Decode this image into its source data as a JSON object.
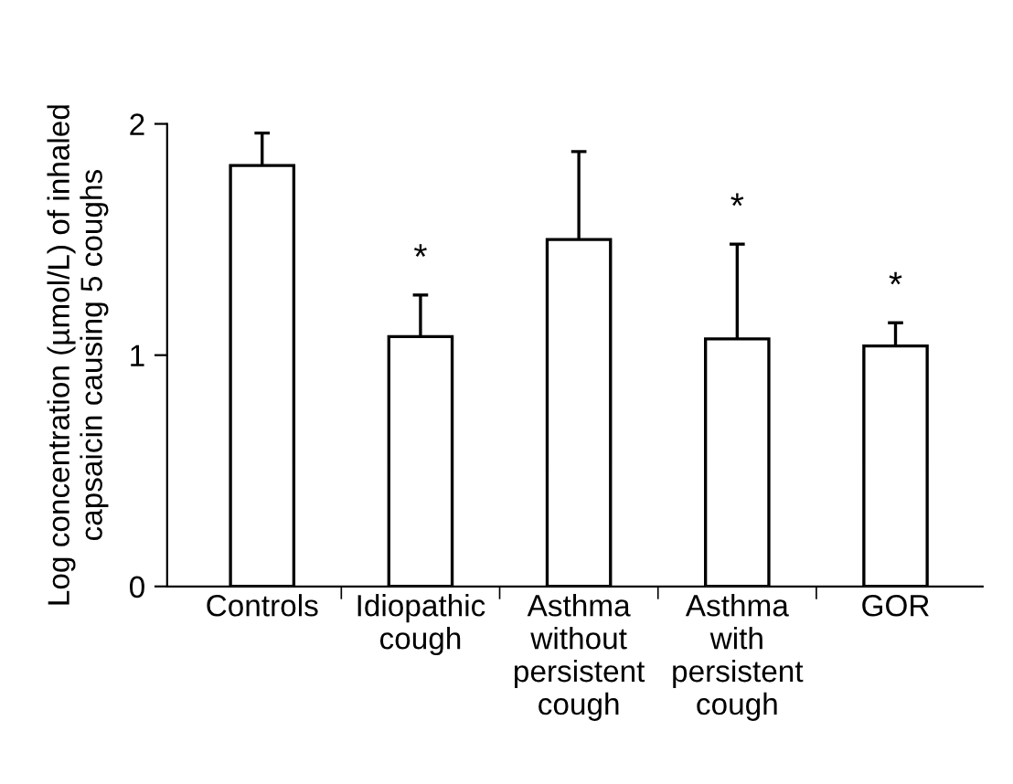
{
  "chart_data": {
    "type": "bar",
    "ylabel": "Log concentration (µmol/L) of inhaled\ncapsaicin causing 5 coughs",
    "categories": [
      "Controls",
      "Idiopathic\ncough",
      "Asthma\nwithout\npersistent\ncough",
      "Asthma\nwith\npersistent\ncough",
      "GOR"
    ],
    "values": [
      1.82,
      1.08,
      1.5,
      1.07,
      1.04
    ],
    "errors": [
      0.14,
      0.18,
      0.38,
      0.41,
      0.1
    ],
    "color": "#ffffff",
    "ylim": [
      0,
      2
    ],
    "yticks": [
      0,
      1,
      2
    ],
    "grid": false,
    "annotations": [
      "*",
      "*",
      "*"
    ]
  }
}
